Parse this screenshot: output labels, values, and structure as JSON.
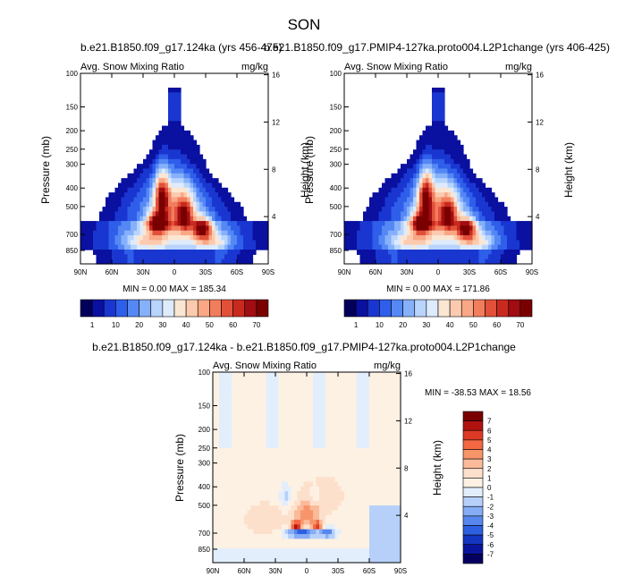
{
  "figure_title": "SON",
  "chart_data": [
    {
      "type": "heatmap",
      "title": "b.e21.B1850.f09_g17.124ka (yrs 456-475)",
      "left_string": "Avg. Snow Mixing Ratio",
      "right_string": "mg/kg",
      "ylabel": "Pressure (mb)",
      "ylabel_right": "Height (km)",
      "x_ticks": [
        "90N",
        "60N",
        "30N",
        "0",
        "30S",
        "60S",
        "90S"
      ],
      "y_ticks": [
        100,
        150,
        200,
        250,
        300,
        400,
        500,
        700,
        850
      ],
      "y_ticks_right": [
        4,
        8,
        12,
        16
      ],
      "stats_text": "MIN =   0.00   MAX = 185.34",
      "min": 0.0,
      "max": 185.34,
      "colorbar_labels": [
        "1",
        "10",
        "20",
        "30",
        "40",
        "50",
        "60",
        "70"
      ],
      "colorbar_levels": [
        1,
        5,
        10,
        15,
        20,
        25,
        30,
        35,
        40,
        45,
        50,
        55,
        60,
        65,
        70
      ],
      "field": "pos_a"
    },
    {
      "type": "heatmap",
      "title": "b.e21.B1850.f09_g17.PMIP4-127ka.proto004.L2P1change (yrs 406-425)",
      "left_string": "Avg. Snow Mixing Ratio",
      "right_string": "mg/kg",
      "ylabel": "Pressure (mb)",
      "ylabel_right": "Height (km)",
      "x_ticks": [
        "90N",
        "60N",
        "30N",
        "0",
        "30S",
        "60S",
        "90S"
      ],
      "y_ticks": [
        100,
        150,
        200,
        250,
        300,
        400,
        500,
        700,
        850
      ],
      "y_ticks_right": [
        4,
        8,
        12,
        16
      ],
      "stats_text": "MIN =   0.00   MAX = 171.86",
      "min": 0.0,
      "max": 171.86,
      "colorbar_labels": [
        "1",
        "10",
        "20",
        "30",
        "40",
        "50",
        "60",
        "70"
      ],
      "colorbar_levels": [
        1,
        5,
        10,
        15,
        20,
        25,
        30,
        35,
        40,
        45,
        50,
        55,
        60,
        65,
        70
      ],
      "field": "pos_b"
    },
    {
      "type": "heatmap",
      "title": "b.e21.B1850.f09_g17.124ka - b.e21.B1850.f09_g17.PMIP4-127ka.proto004.L2P1change",
      "left_string": "Avg. Snow Mixing Ratio",
      "right_string": "mg/kg",
      "ylabel": "Pressure (mb)",
      "ylabel_right": "Height (km)",
      "x_ticks": [
        "90N",
        "60N",
        "30N",
        "0",
        "30S",
        "60S",
        "90S"
      ],
      "y_ticks": [
        100,
        150,
        200,
        250,
        300,
        400,
        500,
        700,
        850
      ],
      "y_ticks_right": [
        4,
        8,
        12,
        16
      ],
      "stats_text": "MIN = -38.53   MAX =  18.56",
      "min": -38.53,
      "max": 18.56,
      "colorbar_labels": [
        "7",
        "6",
        "5",
        "4",
        "3",
        "2",
        "1",
        "0",
        "-1",
        "-2",
        "-3",
        "-4",
        "-5",
        "-6",
        "-7"
      ],
      "field": "diff"
    }
  ],
  "colors": {
    "seq": [
      "#03005a",
      "#0a10a0",
      "#1a36d0",
      "#2e5eea",
      "#5588f4",
      "#86b0fa",
      "#b8d4fc",
      "#ddebfd",
      "#fbe6d3",
      "#fccaae",
      "#f9a785",
      "#f27d5d",
      "#e2503a",
      "#c92a1e",
      "#a00d12",
      "#7a0000"
    ],
    "div": [
      "#7a0000",
      "#b0120f",
      "#dd3a25",
      "#f36743",
      "#f8946a",
      "#fbba99",
      "#fde0cc",
      "#fdf1e3",
      "#e2eefc",
      "#b6d0fa",
      "#86acf5",
      "#5787ee",
      "#2d5fe0",
      "#1335c0",
      "#0a149c",
      "#050060"
    ]
  }
}
